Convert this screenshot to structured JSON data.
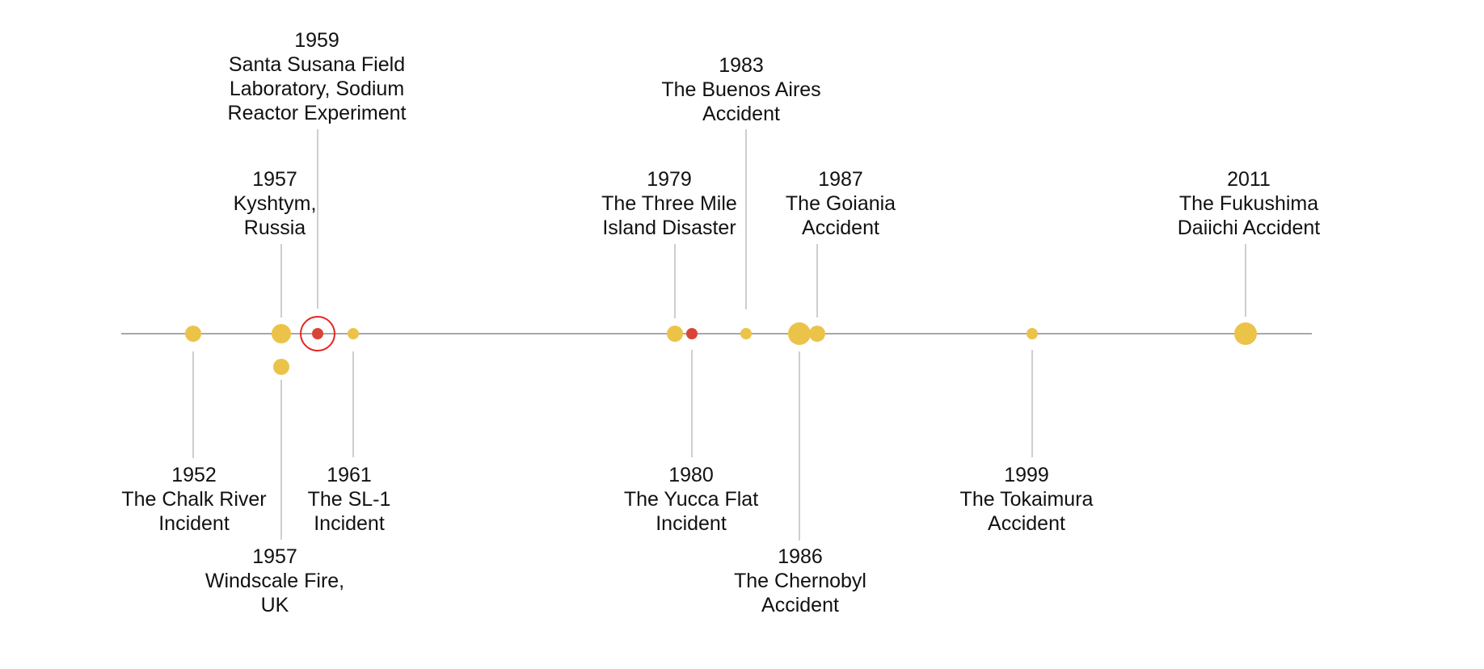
{
  "timeline": {
    "colors": {
      "axis": "#8c8c8c",
      "leader": "#bdbdbd",
      "dot_default": "#ecc349",
      "dot_highlight": "#d94436",
      "ring_highlight": "#e3261f"
    },
    "events": [
      {
        "id": "chalk-river",
        "year": "1952",
        "lines": [
          "The Chalk River",
          "Incident"
        ],
        "size": "medium",
        "style": "default"
      },
      {
        "id": "kyshtym",
        "year": "1957",
        "lines": [
          "Kyshtym,",
          "Russia"
        ],
        "size": "large",
        "style": "default"
      },
      {
        "id": "windscale",
        "year": "1957",
        "lines": [
          "Windscale Fire,",
          "UK"
        ],
        "size": "medium",
        "style": "default"
      },
      {
        "id": "santa-susana",
        "year": "1959",
        "lines": [
          "Santa Susana Field",
          "Laboratory, Sodium",
          "Reactor Experiment"
        ],
        "size": "small",
        "style": "highlight"
      },
      {
        "id": "sl-1",
        "year": "1961",
        "lines": [
          "The SL-1",
          "Incident"
        ],
        "size": "small",
        "style": "default"
      },
      {
        "id": "three-mile-island",
        "year": "1979",
        "lines": [
          "The Three Mile",
          "Island Disaster"
        ],
        "size": "medium",
        "style": "default"
      },
      {
        "id": "yucca-flat",
        "year": "1980",
        "lines": [
          "The Yucca Flat",
          "Incident"
        ],
        "size": "small",
        "style": "red"
      },
      {
        "id": "buenos-aires",
        "year": "1983",
        "lines": [
          "The Buenos Aires",
          "Accident"
        ],
        "size": "small",
        "style": "default"
      },
      {
        "id": "chernobyl",
        "year": "1986",
        "lines": [
          "The Chernobyl",
          "Accident"
        ],
        "size": "xlarge",
        "style": "default"
      },
      {
        "id": "goiania",
        "year": "1987",
        "lines": [
          "The Goiania",
          "Accident"
        ],
        "size": "medium",
        "style": "default"
      },
      {
        "id": "tokaimura",
        "year": "1999",
        "lines": [
          "The Tokaimura",
          "Accident"
        ],
        "size": "small",
        "style": "default"
      },
      {
        "id": "fukushima",
        "year": "2011",
        "lines": [
          "The Fukushima",
          "Daiichi Accident"
        ],
        "size": "xlarge",
        "style": "default"
      }
    ]
  }
}
